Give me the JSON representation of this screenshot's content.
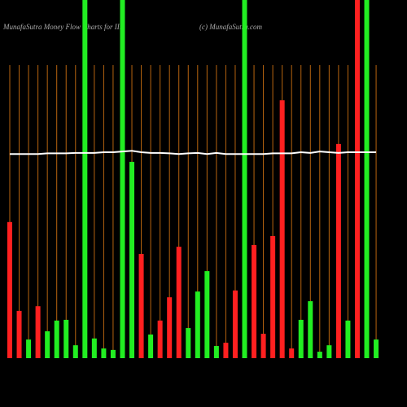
{
  "chart_data": {
    "type": "bar",
    "title": "MunafaSutra  Money Flow  Charts for IIII",
    "subtitle": "(c) MunafaSutra.com",
    "categories": [
      null,
      null,
      null,
      null,
      null,
      null,
      null,
      null,
      null,
      null,
      null,
      null,
      null,
      null,
      null,
      null,
      null,
      null,
      null,
      null,
      null,
      null,
      null,
      null,
      null,
      null,
      null,
      null,
      null,
      null,
      null,
      null,
      null,
      null,
      null,
      null,
      null,
      null,
      null,
      null
    ],
    "values": [
      38.0,
      13.2,
      5.2,
      14.5,
      7.5,
      10.5,
      10.7,
      3.6,
      100,
      5.5,
      2.7,
      2.3,
      100,
      54.8,
      29.1,
      6.6,
      10.5,
      17.0,
      31.1,
      8.4,
      18.6,
      24.3,
      3.4,
      4.3,
      18.9,
      100,
      31.6,
      6.8,
      34.1,
      72.0,
      2.7,
      10.7,
      15.9,
      1.8,
      3.6,
      59.8,
      10.5,
      100,
      100,
      5.2
    ],
    "colors": [
      "#ff2020",
      "#ff2020",
      "#22ee22",
      "#ff2020",
      "#22ee22",
      "#22ee22",
      "#22ee22",
      "#22ee22",
      "#22ee22",
      "#22ee22",
      "#22ee22",
      "#22ee22",
      "#22ee22",
      "#22ee22",
      "#ff2020",
      "#22ee22",
      "#ff2020",
      "#ff2020",
      "#ff2020",
      "#22ee22",
      "#22ee22",
      "#22ee22",
      "#22ee22",
      "#ff2020",
      "#ff2020",
      "#22ee22",
      "#ff2020",
      "#ff2020",
      "#ff2020",
      "#ff2020",
      "#ff2020",
      "#22ee22",
      "#22ee22",
      "#22ee22",
      "#22ee22",
      "#ff2020",
      "#22ee22",
      "#ff2020",
      "#22ee22",
      "#22ee22"
    ],
    "line": {
      "color": "#ffffff",
      "values": [
        57.0,
        57.0,
        57.0,
        57.0,
        57.2,
        57.2,
        57.2,
        57.3,
        57.3,
        57.3,
        57.5,
        57.5,
        57.7,
        57.9,
        57.5,
        57.3,
        57.3,
        57.2,
        57.0,
        57.2,
        57.3,
        57.0,
        57.3,
        57.0,
        57.0,
        57.0,
        57.0,
        57.0,
        57.2,
        57.2,
        57.2,
        57.5,
        57.3,
        57.7,
        57.5,
        57.3,
        57.5,
        57.5,
        57.5,
        57.5
      ]
    },
    "ylim": [
      0,
      100
    ],
    "grid_color": "#b8650f"
  }
}
